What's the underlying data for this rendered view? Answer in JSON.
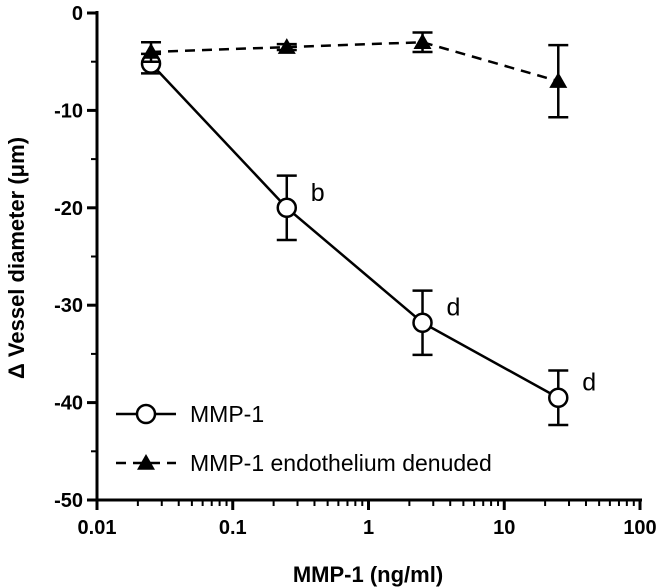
{
  "chart_data": {
    "type": "line",
    "xlabel": "MMP-1 (ng/ml)",
    "ylabel": "Δ Vessel diameter (μm)",
    "xscale": "log",
    "xlim": [
      0.01,
      100
    ],
    "ylim": [
      -50,
      0
    ],
    "xticks": [
      0.01,
      0.1,
      1,
      10,
      100
    ],
    "xtick_labels": [
      "0.01",
      "0.1",
      "1",
      "10",
      "100"
    ],
    "yticks": [
      0,
      -10,
      -20,
      -30,
      -40,
      -50
    ],
    "ytick_labels": [
      "0",
      "-10",
      "-20",
      "-30",
      "-40",
      "-50"
    ],
    "grid": false,
    "legend_position": "bottom-left",
    "series": [
      {
        "name": "MMP-1",
        "marker": "open-circle",
        "line_style": "solid",
        "x": [
          0.025,
          0.25,
          2.5,
          25
        ],
        "y": [
          -5.2,
          -20.0,
          -31.8,
          -39.5
        ],
        "error": [
          1.0,
          3.3,
          3.3,
          2.8
        ],
        "annotations": [
          "",
          "b",
          "d",
          "d"
        ]
      },
      {
        "name": "MMP-1 endothelium denuded",
        "marker": "filled-triangle",
        "line_style": "dashed",
        "x": [
          0.025,
          0.25,
          2.5,
          25
        ],
        "y": [
          -4.0,
          -3.5,
          -3.0,
          -7.0
        ],
        "error": [
          1.0,
          0.3,
          1.0,
          3.7
        ],
        "annotations": [
          "",
          "",
          "",
          ""
        ]
      }
    ]
  }
}
